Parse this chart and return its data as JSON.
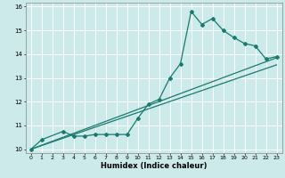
{
  "xlabel": "Humidex (Indice chaleur)",
  "ylabel": "",
  "background_color": "#cceaea",
  "grid_color": "#ffffff",
  "line_color": "#1a7a6e",
  "xlim": [
    -0.5,
    23.5
  ],
  "ylim": [
    9.85,
    16.15
  ],
  "xticks": [
    0,
    1,
    2,
    3,
    4,
    5,
    6,
    7,
    8,
    9,
    10,
    11,
    12,
    13,
    14,
    15,
    16,
    17,
    18,
    19,
    20,
    21,
    22,
    23
  ],
  "yticks": [
    10,
    11,
    12,
    13,
    14,
    15,
    16
  ],
  "series_main": {
    "x": [
      0,
      1,
      3,
      4,
      5,
      6,
      7,
      8,
      9,
      10,
      11,
      12,
      13,
      14,
      15,
      16,
      17,
      18,
      19,
      20,
      21,
      22,
      23
    ],
    "y": [
      10.0,
      10.4,
      10.75,
      10.55,
      10.55,
      10.62,
      10.62,
      10.62,
      10.62,
      11.3,
      11.9,
      12.1,
      13.0,
      13.6,
      15.8,
      15.25,
      15.5,
      15.0,
      14.7,
      14.45,
      14.35,
      13.8,
      13.9
    ]
  },
  "series_line1": {
    "x": [
      0,
      23
    ],
    "y": [
      10.0,
      13.85
    ]
  },
  "series_line2": {
    "x": [
      0,
      23
    ],
    "y": [
      10.0,
      13.55
    ]
  }
}
